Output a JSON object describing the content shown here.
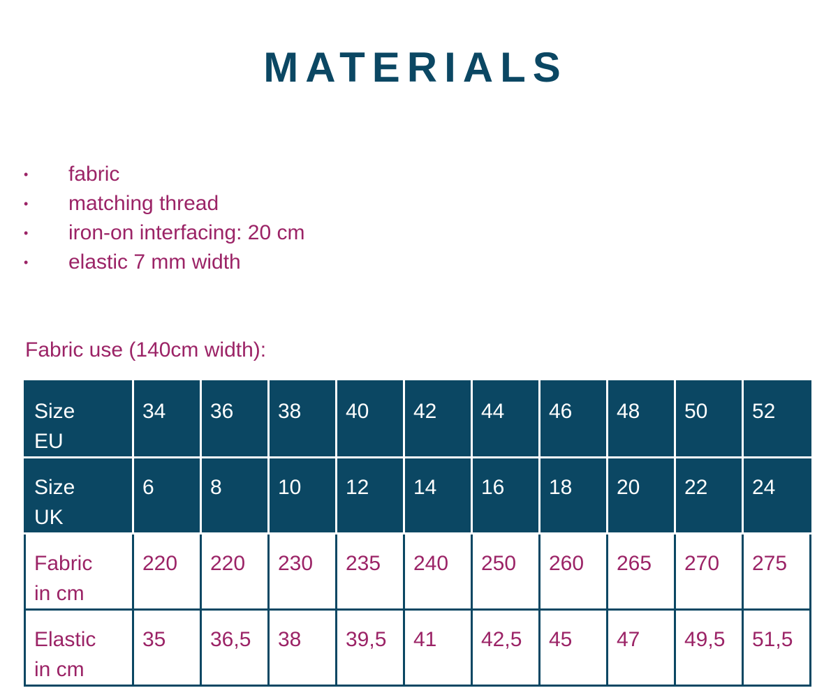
{
  "header": {
    "title": "MATERIALS"
  },
  "materials": [
    "fabric",
    "matching thread",
    "iron-on interfacing: 20 cm",
    "elastic 7 mm width"
  ],
  "table": {
    "caption": "Fabric use (140cm width):",
    "rows": [
      [
        "Size EU",
        "34",
        "36",
        "38",
        "40",
        "42",
        "44",
        "46",
        "48",
        "50",
        "52"
      ],
      [
        "Size UK",
        "6",
        "8",
        "10",
        "12",
        "14",
        "16",
        "18",
        "20",
        "22",
        "24"
      ],
      [
        "Fabric in cm",
        "220",
        "220",
        "230",
        "235",
        "240",
        "250",
        "260",
        "265",
        "270",
        "275"
      ],
      [
        "Elastic in cm",
        "35",
        "36,5",
        "38",
        "39,5",
        "41",
        "42,5",
        "45",
        "47",
        "49,5",
        "51,5"
      ]
    ]
  }
}
